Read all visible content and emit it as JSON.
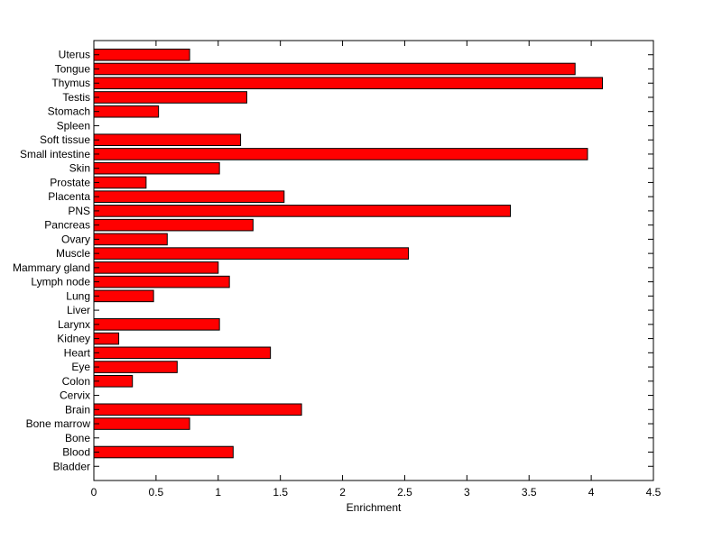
{
  "chart_data": {
    "type": "bar",
    "orientation": "horizontal",
    "title": "",
    "xlabel": "Enrichment",
    "ylabel": "",
    "xlim": [
      0,
      4.5
    ],
    "xticks": [
      "0",
      "0.5",
      "1",
      "1.5",
      "2",
      "2.5",
      "3",
      "3.5",
      "4",
      "4.5"
    ],
    "bar_color": "#ff0000",
    "edge_color": "#000000",
    "grid": false,
    "legend": "none",
    "categories": [
      "Bladder",
      "Blood",
      "Bone",
      "Bone marrow",
      "Brain",
      "Cervix",
      "Colon",
      "Eye",
      "Heart",
      "Kidney",
      "Larynx",
      "Liver",
      "Lung",
      "Lymph node",
      "Mammary gland",
      "Muscle",
      "Ovary",
      "Pancreas",
      "PNS",
      "Placenta",
      "Prostate",
      "Skin",
      "Small intestine",
      "Soft tissue",
      "Spleen",
      "Stomach",
      "Testis",
      "Thymus",
      "Tongue",
      "Uterus"
    ],
    "values": [
      0,
      1.12,
      0,
      0.77,
      1.67,
      0,
      0.31,
      0.67,
      1.42,
      0.2,
      1.01,
      0,
      0.48,
      1.09,
      1.0,
      2.53,
      0.59,
      1.28,
      3.35,
      1.53,
      0.42,
      1.01,
      3.97,
      1.18,
      0,
      0.52,
      1.23,
      4.09,
      3.87,
      0.77
    ]
  }
}
